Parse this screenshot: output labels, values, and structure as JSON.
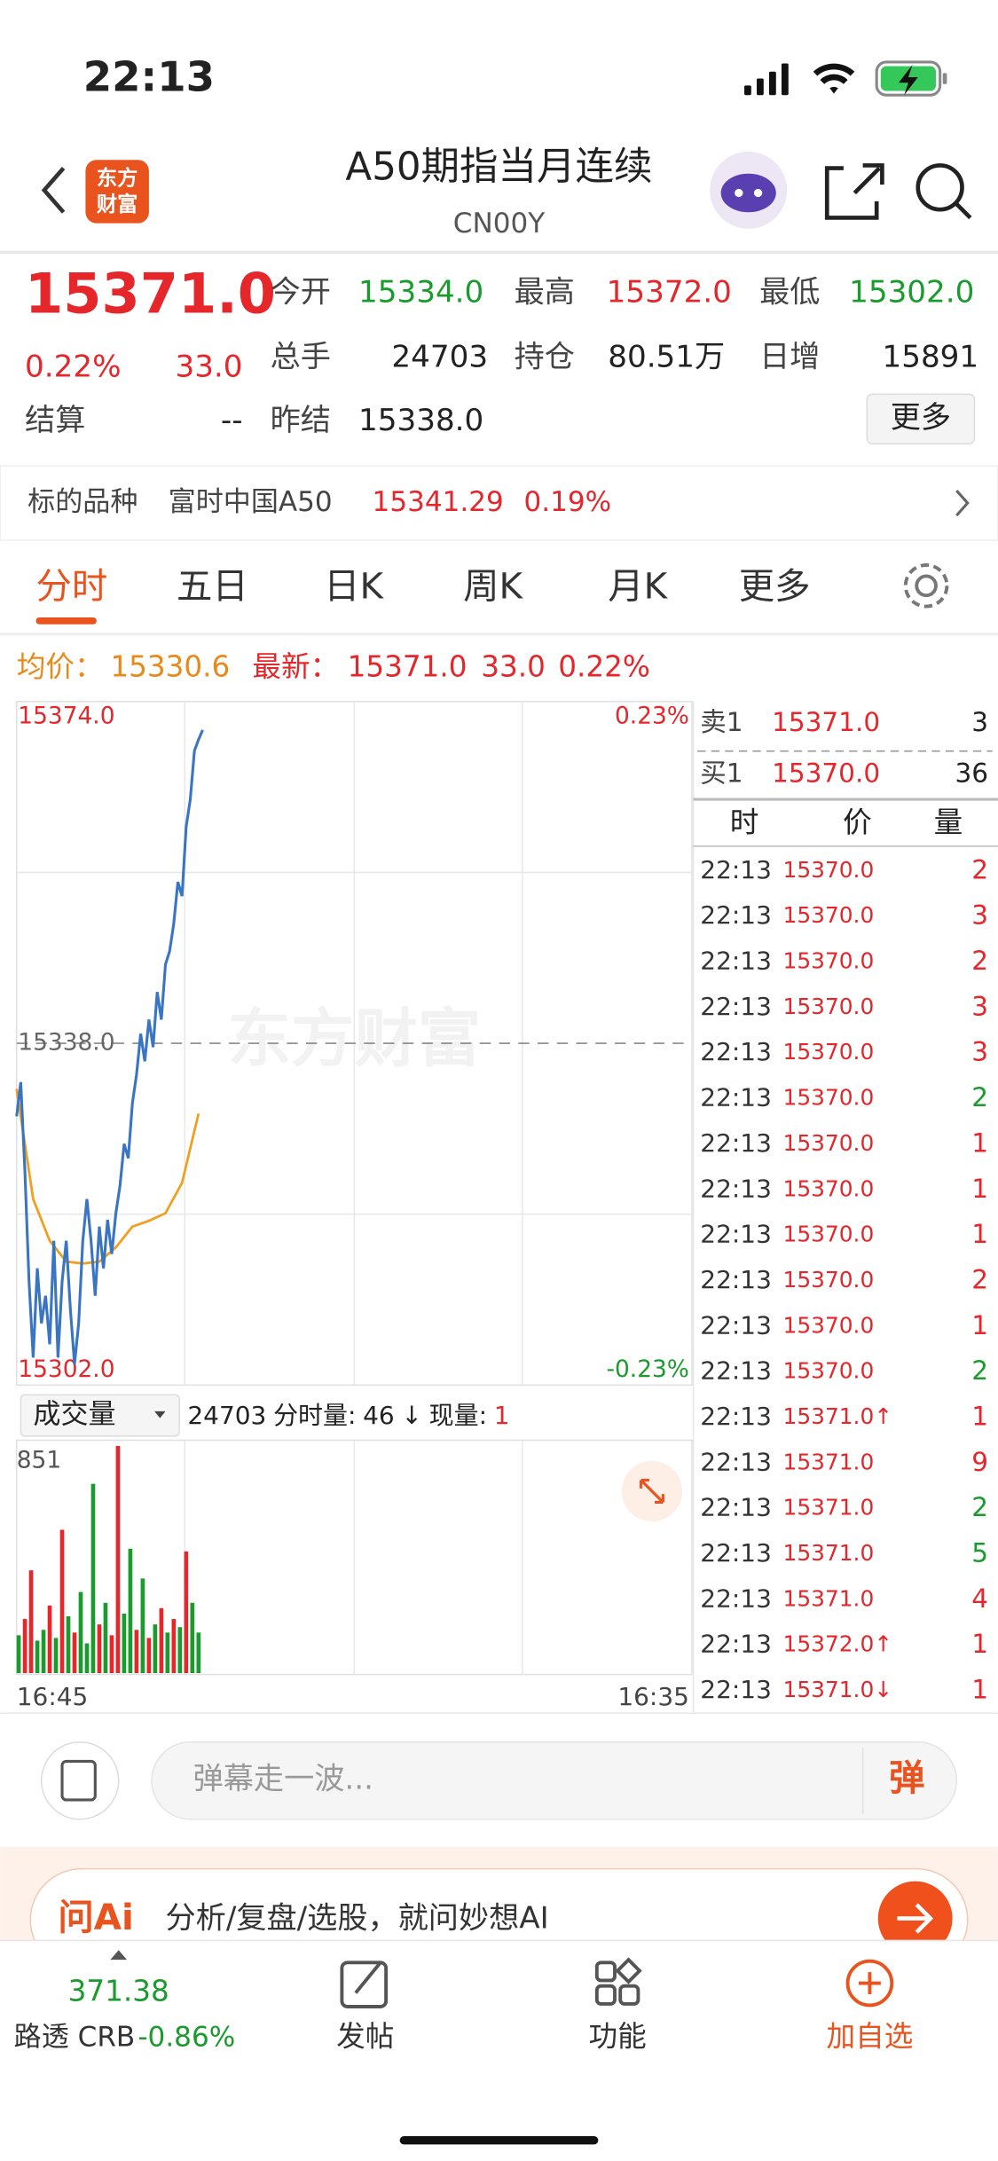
{
  "status_bar": {
    "time": "22:13"
  },
  "header": {
    "logo": [
      "东方",
      "财富"
    ],
    "title": "A50期指当月连续",
    "code": "CN00Y"
  },
  "quote": {
    "price": "15371.0",
    "change_pct": "0.22%",
    "change": "33.0",
    "fields": [
      {
        "label": "今开",
        "value": "15334.0",
        "color": "#1a9b2e"
      },
      {
        "label": "最高",
        "value": "15372.0",
        "color": "#e5262b"
      },
      {
        "label": "最低",
        "value": "15302.0",
        "color": "#1a9b2e"
      },
      {
        "label": "总手",
        "value": "24703",
        "color": "#222222"
      },
      {
        "label": "持仓",
        "value": "80.51万",
        "color": "#222222"
      },
      {
        "label": "日增",
        "value": "15891",
        "color": "#222222"
      },
      {
        "label": "结算",
        "value": "--",
        "color": "#222222"
      },
      {
        "label": "昨结",
        "value": "15338.0",
        "color": "#222222"
      }
    ],
    "more": "更多"
  },
  "underlying": {
    "label": "标的品种",
    "name": "富时中国A50",
    "price": "15341.29",
    "pct": "0.19%"
  },
  "tabs": [
    "分时",
    "五日",
    "日K",
    "周K",
    "月K",
    "更多"
  ],
  "summary": {
    "avg_label": "均价：",
    "avg": "15330.6",
    "latest_label": "最新：",
    "latest": "15371.0",
    "change": "33.0",
    "pct": "0.22%"
  },
  "chart": {
    "watermark": "东方财富",
    "ylim": [
      15302,
      15374
    ],
    "yticks": [
      {
        "value": 15374,
        "label": "15374.0"
      },
      {
        "value": 15338,
        "label": "15338.0"
      },
      {
        "value": 15302,
        "label": "15302.0"
      }
    ],
    "y2lim": [
      -0.23,
      0.23
    ],
    "y2ticks": [
      {
        "value": 0.23,
        "label": "0.23%"
      },
      {
        "value": -0.23,
        "label": "-0.23%"
      }
    ],
    "price_color": "#3a75c4",
    "avg_color": "#f0a020",
    "price": [
      15330.3,
      15333.9,
      15324.5,
      15312.9,
      15304.9,
      15314.3,
      15308.5,
      15311.4,
      15306.3,
      15317.2,
      15304.9,
      15312.9,
      15317.2,
      15310.0,
      15304.2,
      15308.5,
      15317.2,
      15321.6,
      15317.2,
      15311.4,
      15318.7,
      15314.3,
      15319.4,
      15315.8,
      15320.1,
      15323.0,
      15327.4,
      15325.9,
      15331.7,
      15334.7,
      15339.0,
      15336.1,
      15340.5,
      15337.6,
      15343.4,
      15340.5,
      15346.3,
      15347.7,
      15350.6,
      15355.0,
      15353.5,
      15360.8,
      15363.7,
      15368.8,
      15370.0,
      15371.0
    ],
    "avg": [
      15333.2,
      15321.6,
      15317.2,
      15315.0,
      15314.8,
      15315.0,
      15316.5,
      15318.7,
      15319.3,
      15320.1,
      15323.3,
      15330.6
    ],
    "x_labels": [
      "16:45",
      "16:35"
    ]
  },
  "volume": {
    "selector": "成交量",
    "total": "24703",
    "label": "分时量:",
    "value": "46",
    "arrow": "↓",
    "now_label": "现量:",
    "now": "1",
    "ylim": [
      0,
      851
    ],
    "yticks": [
      851
    ],
    "values": [
      140,
      200,
      380,
      120,
      160,
      250,
      130,
      530,
      210,
      150,
      300,
      110,
      700,
      180,
      260,
      140,
      840,
      220,
      460,
      160,
      350,
      130,
      180,
      240,
      150,
      200,
      170,
      450,
      260,
      150
    ],
    "colors": [
      "#1a9b2e",
      "#e5262b",
      "#e5262b",
      "#1a9b2e",
      "#1a9b2e",
      "#e5262b",
      "#1a9b2e",
      "#e5262b",
      "#1a9b2e",
      "#e5262b",
      "#1a9b2e",
      "#1a9b2e",
      "#1a9b2e",
      "#e5262b",
      "#1a9b2e",
      "#e5262b",
      "#e5262b",
      "#1a9b2e",
      "#1a9b2e",
      "#e5262b",
      "#1a9b2e",
      "#e5262b",
      "#1a9b2e",
      "#e5262b",
      "#1a9b2e",
      "#e5262b",
      "#1a9b2e",
      "#e5262b",
      "#1a9b2e",
      "#1a9b2e"
    ]
  },
  "order_book": {
    "sell": {
      "label": "卖1",
      "price": "15371.0",
      "qty": "3"
    },
    "buy": {
      "label": "买1",
      "price": "15370.0",
      "qty": "36"
    }
  },
  "trades": {
    "headers": [
      "时",
      "价",
      "量"
    ],
    "rows": [
      {
        "time": "22:13",
        "price": "15370.0",
        "qty": "2",
        "color": "#e5262b"
      },
      {
        "time": "22:13",
        "price": "15370.0",
        "qty": "3",
        "color": "#e5262b"
      },
      {
        "time": "22:13",
        "price": "15370.0",
        "qty": "2",
        "color": "#e5262b"
      },
      {
        "time": "22:13",
        "price": "15370.0",
        "qty": "3",
        "color": "#e5262b"
      },
      {
        "time": "22:13",
        "price": "15370.0",
        "qty": "3",
        "color": "#e5262b"
      },
      {
        "time": "22:13",
        "price": "15370.0",
        "qty": "2",
        "color": "#1a9b2e"
      },
      {
        "time": "22:13",
        "price": "15370.0",
        "qty": "1",
        "color": "#e5262b"
      },
      {
        "time": "22:13",
        "price": "15370.0",
        "qty": "1",
        "color": "#e5262b"
      },
      {
        "time": "22:13",
        "price": "15370.0",
        "qty": "1",
        "color": "#e5262b"
      },
      {
        "time": "22:13",
        "price": "15370.0",
        "qty": "2",
        "color": "#e5262b"
      },
      {
        "time": "22:13",
        "price": "15370.0",
        "qty": "1",
        "color": "#e5262b"
      },
      {
        "time": "22:13",
        "price": "15370.0",
        "qty": "2",
        "color": "#1a9b2e"
      },
      {
        "time": "22:13",
        "price": "15371.0↑",
        "qty": "1",
        "color": "#e5262b"
      },
      {
        "time": "22:13",
        "price": "15371.0",
        "qty": "9",
        "color": "#e5262b"
      },
      {
        "time": "22:13",
        "price": "15371.0",
        "qty": "2",
        "color": "#1a9b2e"
      },
      {
        "time": "22:13",
        "price": "15371.0",
        "qty": "5",
        "color": "#1a9b2e"
      },
      {
        "time": "22:13",
        "price": "15371.0",
        "qty": "4",
        "color": "#e5262b"
      },
      {
        "time": "22:13",
        "price": "15372.0↑",
        "qty": "1",
        "color": "#e5262b"
      },
      {
        "time": "22:13",
        "price": "15371.0↓",
        "qty": "1",
        "color": "#e5262b"
      }
    ]
  },
  "comment": {
    "placeholder": "弹幕走一波...",
    "button": "弹"
  },
  "ai": {
    "brand": "问Ai",
    "text": "分析/复盘/选股，就问妙想AI"
  },
  "bottom_nav": {
    "ticker_value": "371.38",
    "ticker_name": "路透 CRB",
    "ticker_pct": "-0.86%",
    "items": [
      "发帖",
      "功能",
      "加自选"
    ]
  }
}
